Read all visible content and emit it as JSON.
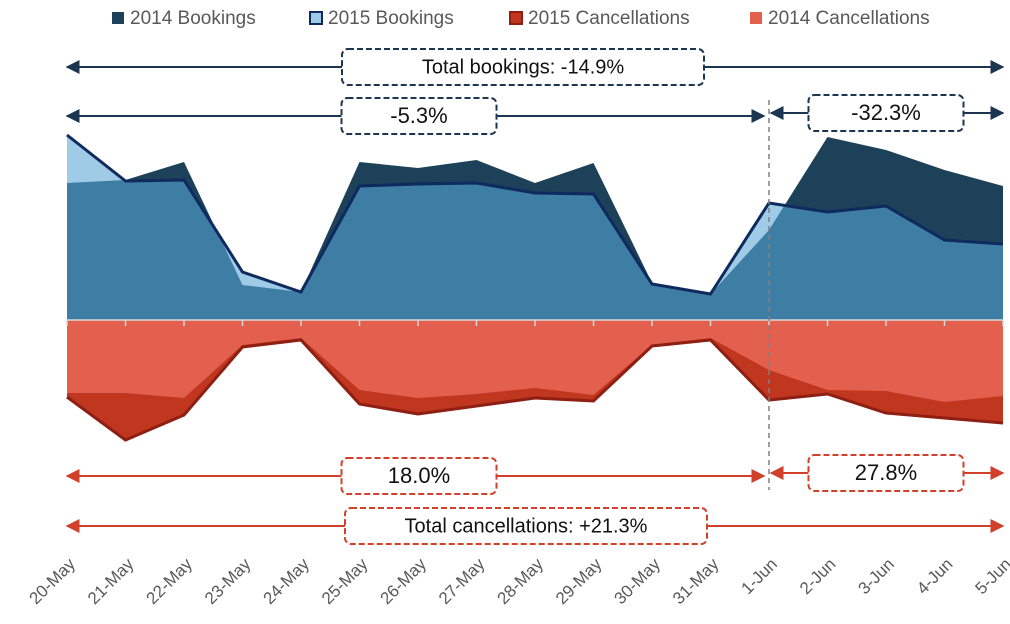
{
  "chart_data": {
    "type": "area",
    "categories": [
      "20-May",
      "21-May",
      "22-May",
      "23-May",
      "24-May",
      "25-May",
      "26-May",
      "27-May",
      "28-May",
      "29-May",
      "30-May",
      "31-May",
      "1-Jun",
      "2-Jun",
      "3-Jun",
      "4-Jun",
      "5-Jun"
    ],
    "series": [
      {
        "name": "2014 Bookings",
        "color": "#1c4159",
        "values": [
          137,
          140,
          158,
          35,
          28,
          158,
          152,
          160,
          137,
          157,
          37,
          26,
          90,
          183,
          170,
          150,
          134
        ]
      },
      {
        "name": "2015 Bookings",
        "color": "#9fcbe6",
        "values": [
          185,
          139,
          140,
          48,
          28,
          134,
          136,
          137,
          127,
          126,
          36,
          26,
          117,
          108,
          114,
          80,
          76
        ]
      },
      {
        "name": "2015 Cancellations",
        "color": "#c0361f",
        "values": [
          -77,
          -120,
          -95,
          -27,
          -20,
          -84,
          -94,
          -86,
          -78,
          -81,
          -26,
          -20,
          -80,
          -74,
          -93,
          -98,
          -103
        ]
      },
      {
        "name": "2014 Cancellations",
        "color": "#e3604e",
        "values": [
          -73,
          -73,
          -78,
          -25,
          -18,
          -70,
          -78,
          -74,
          -68,
          -75,
          -25,
          -18,
          -50,
          -70,
          -71,
          -82,
          -76
        ]
      }
    ],
    "ylim": [
      -130,
      190
    ],
    "annotations": [
      "Total bookings: -14.9%",
      "-5.3%",
      "-32.3%",
      "18.0%",
      "27.8%",
      "Total cancellations: +21.3%"
    ]
  }
}
